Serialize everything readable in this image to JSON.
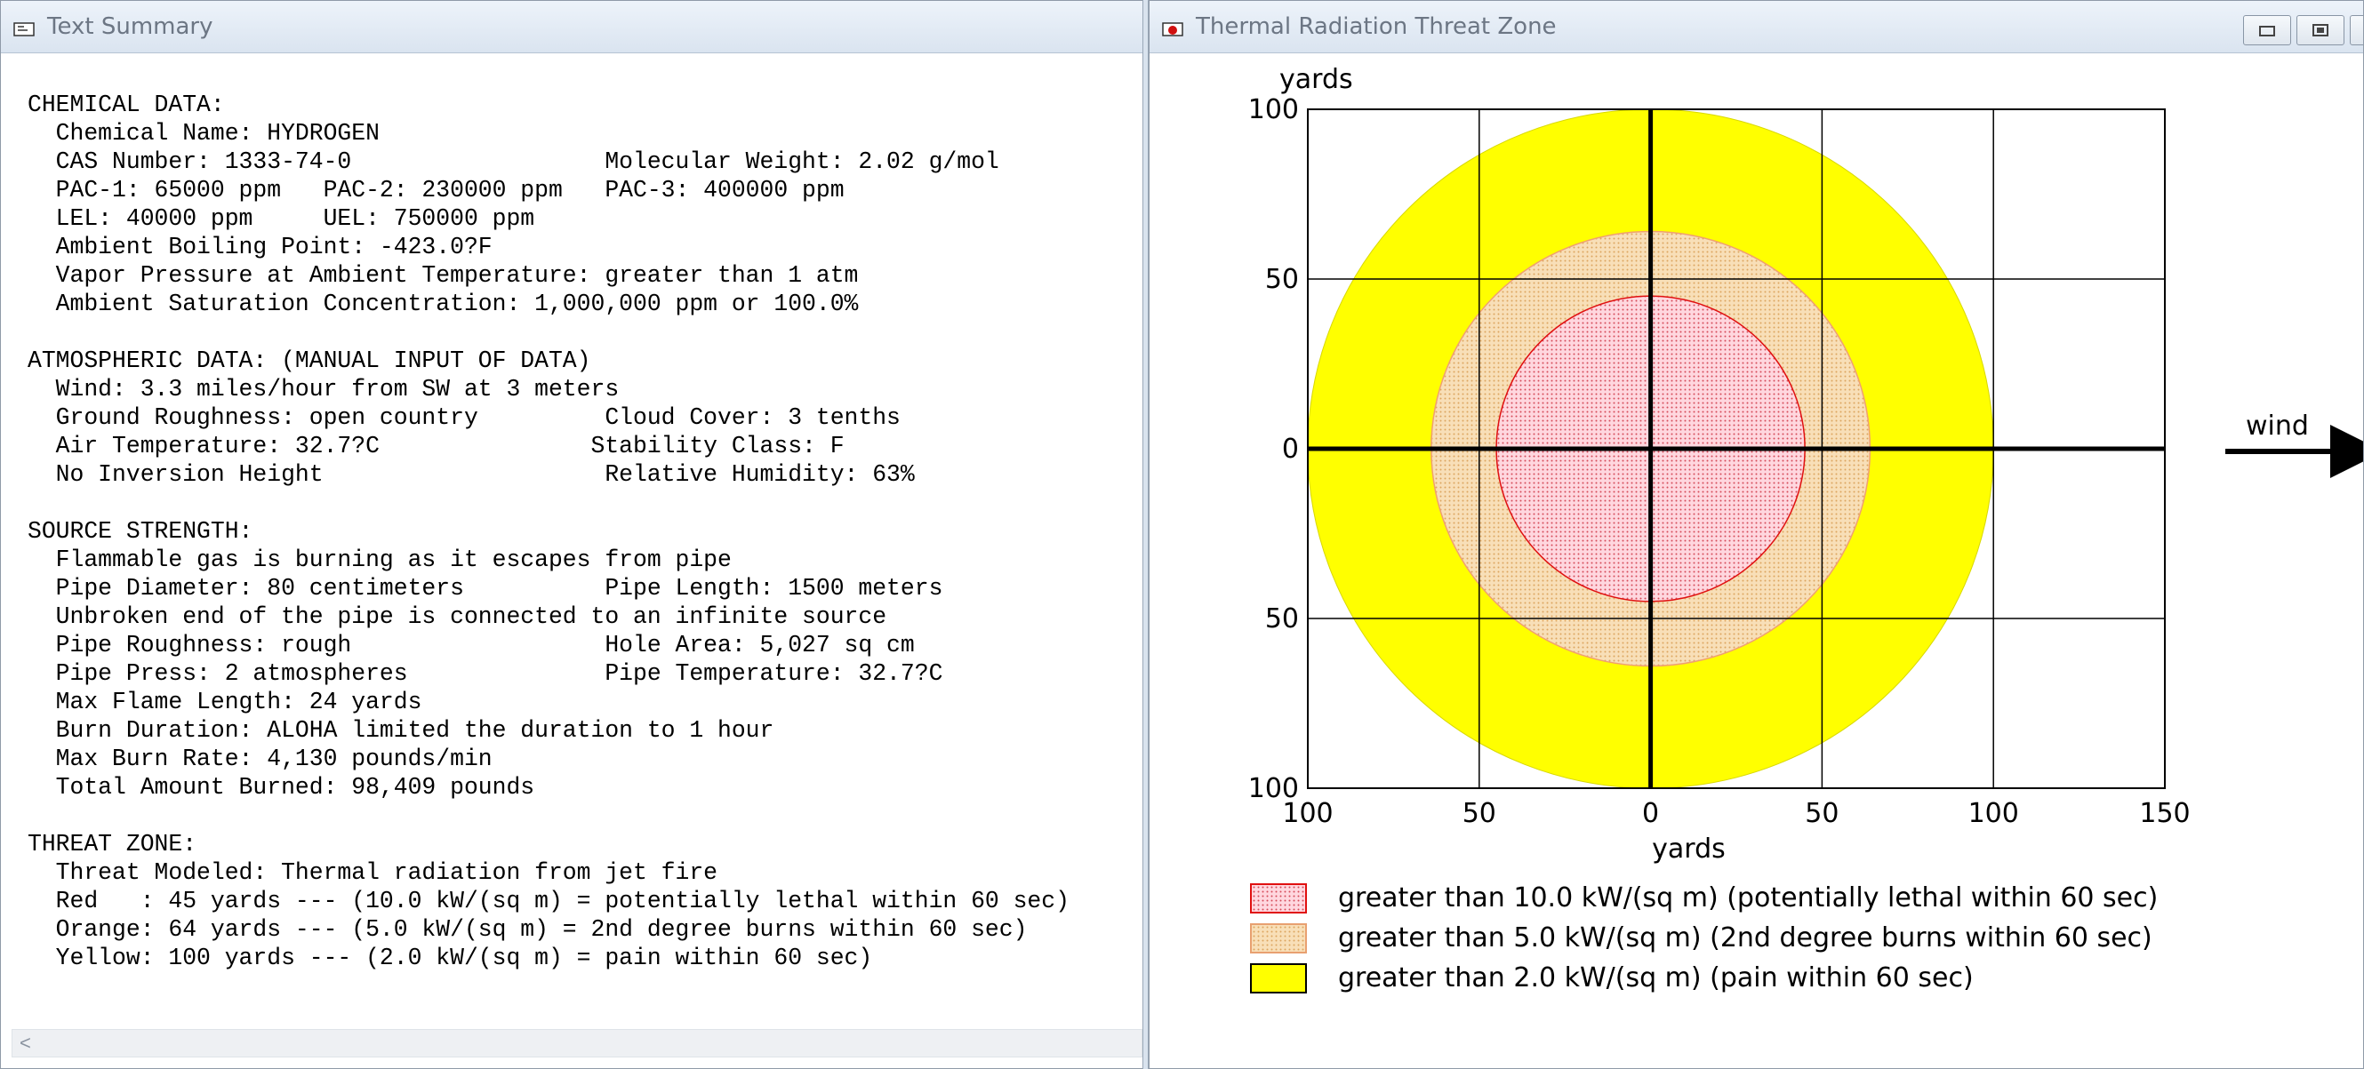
{
  "summary_window": {
    "title": "Text Summary",
    "text": "CHEMICAL DATA:\n  Chemical Name: HYDROGEN\n  CAS Number: 1333-74-0                  Molecular Weight: 2.02 g/mol\n  PAC-1: 65000 ppm   PAC-2: 230000 ppm   PAC-3: 400000 ppm\n  LEL: 40000 ppm     UEL: 750000 ppm\n  Ambient Boiling Point: -423.0?F\n  Vapor Pressure at Ambient Temperature: greater than 1 atm\n  Ambient Saturation Concentration: 1,000,000 ppm or 100.0%\n\nATMOSPHERIC DATA: (MANUAL INPUT OF DATA)\n  Wind: 3.3 miles/hour from SW at 3 meters\n  Ground Roughness: open country         Cloud Cover: 3 tenths\n  Air Temperature: 32.7?C               Stability Class: F\n  No Inversion Height                    Relative Humidity: 63%\n\nSOURCE STRENGTH:\n  Flammable gas is burning as it escapes from pipe\n  Pipe Diameter: 80 centimeters          Pipe Length: 1500 meters\n  Unbroken end of the pipe is connected to an infinite source\n  Pipe Roughness: rough                  Hole Area: 5,027 sq cm\n  Pipe Press: 2 atmospheres              Pipe Temperature: 32.7?C\n  Max Flame Length: 24 yards\n  Burn Duration: ALOHA limited the duration to 1 hour\n  Max Burn Rate: 4,130 pounds/min\n  Total Amount Burned: 98,409 pounds\n\nTHREAT ZONE:\n  Threat Modeled: Thermal radiation from jet fire\n  Red   : 45 yards --- (10.0 kW/(sq m) = potentially lethal within 60 sec)\n  Orange: 64 yards --- (5.0 kW/(sq m) = 2nd degree burns within 60 sec)\n  Yellow: 100 yards --- (2.0 kW/(sq m) = pain within 60 sec)",
    "scroll_left_glyph": "<"
  },
  "threat_window": {
    "title": "Thermal Radiation Threat Zone",
    "buttons": [
      "minimize",
      "restore",
      "close"
    ]
  },
  "chart_data": {
    "type": "scatter",
    "xlabel": "yards",
    "ylabel": "yards",
    "xlim": [
      -100,
      150
    ],
    "ylim": [
      -100,
      100
    ],
    "x_ticks": [
      {
        "value": -100,
        "label": "100"
      },
      {
        "value": -50,
        "label": "50"
      },
      {
        "value": 0,
        "label": "0"
      },
      {
        "value": 50,
        "label": "50"
      },
      {
        "value": 100,
        "label": "100"
      },
      {
        "value": 150,
        "label": "150"
      }
    ],
    "y_ticks": [
      {
        "value": 100,
        "label": "100"
      },
      {
        "value": 50,
        "label": "50"
      },
      {
        "value": 0,
        "label": "0"
      },
      {
        "value": -50,
        "label": "50"
      },
      {
        "value": -100,
        "label": "100"
      }
    ],
    "grid": true,
    "wind_label": "wind",
    "zones": [
      {
        "color": "#ffff00",
        "pattern": "solid",
        "radius": 100,
        "label": "greater than 2.0 kW/(sq m) (pain within 60 sec)"
      },
      {
        "color": "#f7d3a0",
        "pattern": "dots",
        "radius": 64,
        "label": "greater than 5.0 kW/(sq m) (2nd degree burns within 60 sec)"
      },
      {
        "color": "#ffd7df",
        "pattern": "dots",
        "radius": 45,
        "label": "greater than 10.0 kW/(sq m) (potentially lethal within 60 sec)"
      }
    ],
    "legend": [
      {
        "swatch": "red-dots",
        "label": "greater than 10.0 kW/(sq m) (potentially lethal within 60 sec)"
      },
      {
        "swatch": "orange-dots",
        "label": "greater than 5.0 kW/(sq m) (2nd degree burns within 60 sec)"
      },
      {
        "swatch": "yellow-solid",
        "label": "greater than 2.0 kW/(sq m) (pain within 60 sec)"
      }
    ]
  }
}
